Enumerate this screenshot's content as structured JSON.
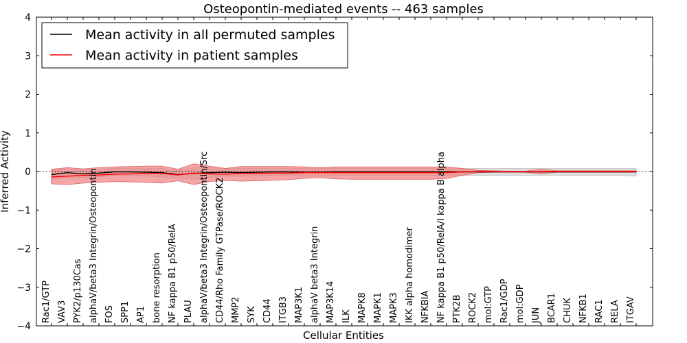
{
  "chart_data": {
    "type": "line",
    "title": "Osteopontin-mediated events -- 463 samples",
    "xlabel": "Cellular Entities",
    "ylabel": "Inferred Activity",
    "ylim": [
      -4,
      4
    ],
    "yticks": [
      4,
      3,
      2,
      1,
      0,
      -1,
      -2,
      -3,
      -4
    ],
    "ytick_labels": [
      "4",
      "3",
      "2",
      "1",
      "0",
      "−1",
      "−2",
      "−3",
      "−4"
    ],
    "reference_line": 0,
    "legend_position": "top-left",
    "categories": [
      "Rac1/GTP",
      "VAV3",
      "PYK2/p130Cas",
      "alphaV/beta3 Integrin/Osteopontin",
      "FOS",
      "SPP1",
      "AP1",
      "bone resorption",
      "NF kappa B1 p50/RelA",
      "PLAU",
      "alphaV/beta3 Integrin/Osteopontin/Src",
      "CD44/Rho Family GTPase/ROCK2",
      "MMP2",
      "SYK",
      "CD44",
      "ITGB3",
      "MAP3K1",
      "alphaV beta3 Integrin",
      "MAP3K14",
      "ILK",
      "MAPK8",
      "MAPK1",
      "MAPK3",
      "IKK alpha homodimer",
      "NFKBIA",
      "NF kappa B1 p50/RelA/I kappa B alpha",
      "PTK2B",
      "ROCK2",
      "mol:GTP",
      "Rac1/GDP",
      "mol:GDP",
      "JUN",
      "BCAR1",
      "CHUK",
      "NFKB1",
      "RAC1",
      "RELA",
      "ITGAV"
    ],
    "series": [
      {
        "name": "Mean activity in all permuted samples",
        "color": "#000000",
        "values": [
          -0.08,
          -0.03,
          -0.06,
          -0.04,
          -0.01,
          -0.01,
          -0.02,
          -0.03,
          -0.08,
          -0.05,
          -0.03,
          -0.02,
          -0.03,
          -0.02,
          -0.01,
          -0.01,
          -0.02,
          -0.02,
          -0.01,
          -0.01,
          -0.01,
          -0.01,
          -0.01,
          -0.01,
          -0.01,
          -0.01,
          -0.01,
          -0.01,
          -0.01,
          -0.01,
          -0.01,
          -0.01,
          -0.01,
          -0.01,
          -0.01,
          -0.01,
          -0.01,
          -0.01
        ],
        "band_upper": [
          0.04,
          0.08,
          0.04,
          0.06,
          0.08,
          0.08,
          0.08,
          0.08,
          0.02,
          0.1,
          0.1,
          0.08,
          0.08,
          0.08,
          0.08,
          0.08,
          0.08,
          0.08,
          0.08,
          0.08,
          0.08,
          0.08,
          0.08,
          0.08,
          0.08,
          0.08,
          0.08,
          0.08,
          0.08,
          0.08,
          0.08,
          0.08,
          0.08,
          0.08,
          0.08,
          0.08,
          0.08,
          0.08
        ],
        "band_lower": [
          -0.2,
          -0.15,
          -0.16,
          -0.14,
          -0.1,
          -0.1,
          -0.12,
          -0.14,
          -0.18,
          -0.2,
          -0.16,
          -0.12,
          -0.12,
          -0.12,
          -0.1,
          -0.1,
          -0.12,
          -0.12,
          -0.1,
          -0.1,
          -0.1,
          -0.1,
          -0.1,
          -0.1,
          -0.1,
          -0.1,
          -0.1,
          -0.1,
          -0.1,
          -0.1,
          -0.1,
          -0.1,
          -0.1,
          -0.1,
          -0.1,
          -0.1,
          -0.1,
          -0.12
        ]
      },
      {
        "name": "Mean activity in patient samples",
        "color": "#ff0000",
        "values": [
          -0.14,
          -0.12,
          -0.1,
          -0.09,
          -0.07,
          -0.06,
          -0.05,
          -0.05,
          -0.09,
          -0.04,
          -0.06,
          -0.07,
          -0.05,
          -0.05,
          -0.04,
          -0.04,
          -0.03,
          -0.03,
          -0.03,
          -0.03,
          -0.03,
          -0.03,
          -0.03,
          -0.03,
          -0.03,
          -0.03,
          -0.01,
          0.0,
          0.0,
          -0.01,
          -0.01,
          0.0,
          0.0,
          0.0,
          0.0,
          0.0,
          0.0,
          0.0
        ],
        "band_upper": [
          0.06,
          0.1,
          0.07,
          0.1,
          0.12,
          0.13,
          0.14,
          0.14,
          0.06,
          0.2,
          0.14,
          0.08,
          0.13,
          0.13,
          0.13,
          0.13,
          0.12,
          0.1,
          0.12,
          0.12,
          0.12,
          0.12,
          0.12,
          0.12,
          0.12,
          0.12,
          0.08,
          0.03,
          0.02,
          0.01,
          0.01,
          0.06,
          0.02,
          0.02,
          0.02,
          0.02,
          0.02,
          0.02
        ],
        "band_lower": [
          -0.32,
          -0.34,
          -0.3,
          -0.28,
          -0.26,
          -0.27,
          -0.28,
          -0.3,
          -0.24,
          -0.34,
          -0.26,
          -0.23,
          -0.25,
          -0.24,
          -0.23,
          -0.21,
          -0.18,
          -0.16,
          -0.19,
          -0.2,
          -0.2,
          -0.2,
          -0.2,
          -0.2,
          -0.2,
          -0.18,
          -0.1,
          -0.03,
          -0.02,
          -0.02,
          -0.02,
          -0.06,
          -0.02,
          -0.02,
          -0.02,
          -0.02,
          -0.02,
          -0.02
        ]
      }
    ]
  }
}
